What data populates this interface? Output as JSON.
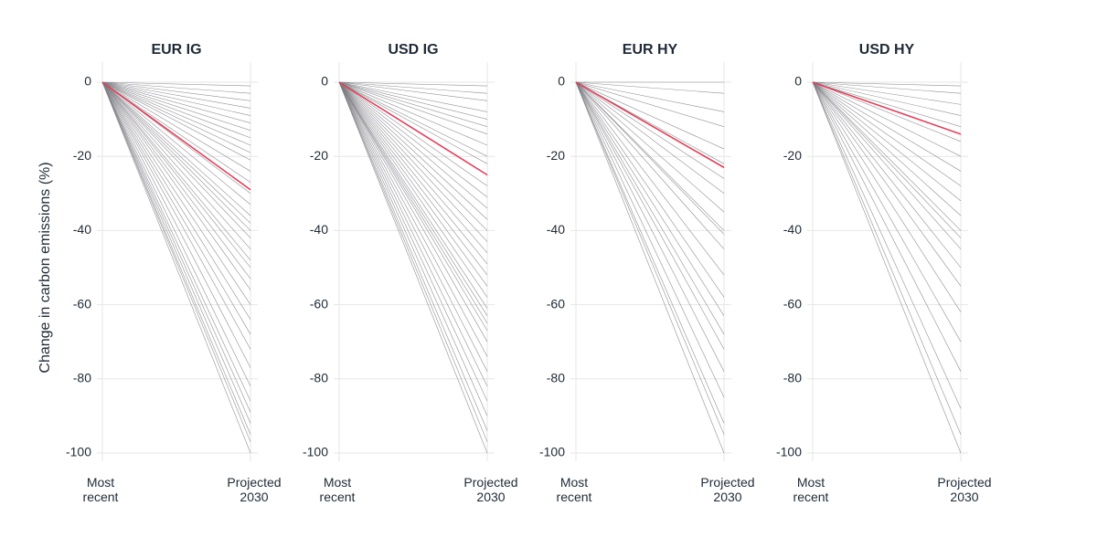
{
  "chart_data": [
    {
      "type": "line",
      "title": "EUR IG",
      "ylabel": "Change in carbon emissions (%)",
      "categories": [
        "Most recent",
        "Projected 2030"
      ],
      "ylim": [
        -100,
        0
      ],
      "yticks": [
        0,
        -20,
        -40,
        -60,
        -80,
        -100
      ],
      "grid": true,
      "color": "#7d7d82",
      "series": [
        {
          "values": [
            0,
            -1
          ]
        },
        {
          "values": [
            0,
            -3
          ]
        },
        {
          "values": [
            0,
            -5
          ]
        },
        {
          "values": [
            0,
            -7
          ]
        },
        {
          "values": [
            0,
            -9
          ]
        },
        {
          "values": [
            0,
            -11
          ]
        },
        {
          "values": [
            0,
            -13
          ]
        },
        {
          "values": [
            0,
            -15
          ]
        },
        {
          "values": [
            0,
            -17
          ]
        },
        {
          "values": [
            0,
            -19
          ]
        },
        {
          "values": [
            0,
            -21
          ]
        },
        {
          "values": [
            0,
            -24
          ]
        },
        {
          "values": [
            0,
            -27
          ]
        },
        {
          "values": [
            0,
            -30
          ]
        },
        {
          "values": [
            0,
            -33
          ]
        },
        {
          "values": [
            0,
            -36
          ]
        },
        {
          "values": [
            0,
            -38
          ]
        },
        {
          "values": [
            0,
            -40
          ]
        },
        {
          "values": [
            0,
            -42
          ]
        },
        {
          "values": [
            0,
            -45
          ]
        },
        {
          "values": [
            0,
            -48
          ]
        },
        {
          "values": [
            0,
            -50
          ]
        },
        {
          "values": [
            0,
            -53
          ]
        },
        {
          "values": [
            0,
            -56
          ]
        },
        {
          "values": [
            0,
            -60
          ]
        },
        {
          "values": [
            0,
            -64
          ]
        },
        {
          "values": [
            0,
            -68
          ]
        },
        {
          "values": [
            0,
            -72
          ]
        },
        {
          "values": [
            0,
            -77
          ]
        },
        {
          "values": [
            0,
            -82
          ]
        },
        {
          "values": [
            0,
            -86
          ]
        },
        {
          "values": [
            0,
            -89
          ]
        },
        {
          "values": [
            0,
            -92
          ]
        },
        {
          "values": [
            0,
            -95
          ]
        },
        {
          "values": [
            0,
            -97
          ]
        },
        {
          "values": [
            0,
            -100
          ]
        },
        {
          "color": "#e0405a",
          "values": [
            0,
            -29
          ]
        }
      ]
    },
    {
      "type": "line",
      "title": "USD IG",
      "categories": [
        "Most recent",
        "Projected 2030"
      ],
      "ylim": [
        -100,
        0
      ],
      "yticks": [
        0,
        -20,
        -40,
        -60,
        -80,
        -100
      ],
      "grid": true,
      "color": "#7d7d82",
      "series": [
        {
          "values": [
            0,
            -1
          ]
        },
        {
          "values": [
            0,
            -3
          ]
        },
        {
          "values": [
            0,
            -5
          ]
        },
        {
          "values": [
            0,
            -8
          ]
        },
        {
          "values": [
            0,
            -10
          ]
        },
        {
          "values": [
            0,
            -12
          ]
        },
        {
          "values": [
            0,
            -14
          ]
        },
        {
          "values": [
            0,
            -17
          ]
        },
        {
          "values": [
            0,
            -20
          ]
        },
        {
          "values": [
            0,
            -22
          ]
        },
        {
          "values": [
            0,
            -25
          ]
        },
        {
          "values": [
            0,
            -28
          ]
        },
        {
          "values": [
            0,
            -31
          ]
        },
        {
          "values": [
            0,
            -34
          ]
        },
        {
          "values": [
            0,
            -37
          ]
        },
        {
          "values": [
            0,
            -40
          ]
        },
        {
          "values": [
            0,
            -43
          ]
        },
        {
          "values": [
            0,
            -46
          ]
        },
        {
          "values": [
            0,
            -49
          ]
        },
        {
          "values": [
            0,
            -52
          ]
        },
        {
          "values": [
            0,
            -55
          ]
        },
        {
          "values": [
            0,
            -58
          ]
        },
        {
          "values": [
            0,
            -61
          ]
        },
        {
          "values": [
            0,
            -63
          ]
        },
        {
          "values": [
            0,
            -65
          ]
        },
        {
          "values": [
            0,
            -67
          ]
        },
        {
          "values": [
            0,
            -70
          ]
        },
        {
          "values": [
            0,
            -74
          ]
        },
        {
          "values": [
            0,
            -78
          ]
        },
        {
          "values": [
            0,
            -82
          ]
        },
        {
          "values": [
            0,
            -86
          ]
        },
        {
          "values": [
            0,
            -90
          ]
        },
        {
          "values": [
            0,
            -94
          ]
        },
        {
          "values": [
            0,
            -97
          ]
        },
        {
          "values": [
            0,
            -100
          ]
        },
        {
          "color": "#e0405a",
          "values": [
            0,
            -25
          ]
        }
      ]
    },
    {
      "type": "line",
      "title": "EUR HY",
      "categories": [
        "Most recent",
        "Projected 2030"
      ],
      "ylim": [
        -100,
        0
      ],
      "yticks": [
        0,
        -20,
        -40,
        -60,
        -80,
        -100
      ],
      "grid": true,
      "color": "#7d7d82",
      "series": [
        {
          "values": [
            0,
            0
          ]
        },
        {
          "values": [
            0,
            -3
          ]
        },
        {
          "values": [
            0,
            -8
          ]
        },
        {
          "values": [
            0,
            -12
          ]
        },
        {
          "values": [
            0,
            -18
          ]
        },
        {
          "values": [
            0,
            -22
          ]
        },
        {
          "values": [
            0,
            -26
          ]
        },
        {
          "values": [
            0,
            -30
          ]
        },
        {
          "values": [
            0,
            -35
          ]
        },
        {
          "values": [
            0,
            -40
          ]
        },
        {
          "values": [
            0,
            -41
          ]
        },
        {
          "values": [
            0,
            -45
          ]
        },
        {
          "values": [
            0,
            -52
          ]
        },
        {
          "values": [
            0,
            -58
          ]
        },
        {
          "values": [
            0,
            -63
          ]
        },
        {
          "values": [
            0,
            -68
          ]
        },
        {
          "values": [
            0,
            -72
          ]
        },
        {
          "values": [
            0,
            -78
          ]
        },
        {
          "values": [
            0,
            -85
          ]
        },
        {
          "values": [
            0,
            -92
          ]
        },
        {
          "values": [
            0,
            -95
          ]
        },
        {
          "values": [
            0,
            -100
          ]
        },
        {
          "color": "#e0405a",
          "values": [
            0,
            -23
          ]
        }
      ]
    },
    {
      "type": "line",
      "title": "USD HY",
      "categories": [
        "Most recent",
        "Projected 2030"
      ],
      "ylim": [
        -100,
        0
      ],
      "yticks": [
        0,
        -20,
        -40,
        -60,
        -80,
        -100
      ],
      "grid": true,
      "color": "#7d7d82",
      "series": [
        {
          "values": [
            0,
            -1
          ]
        },
        {
          "values": [
            0,
            -3
          ]
        },
        {
          "values": [
            0,
            -6
          ]
        },
        {
          "values": [
            0,
            -9
          ]
        },
        {
          "values": [
            0,
            -12
          ]
        },
        {
          "values": [
            0,
            -16
          ]
        },
        {
          "values": [
            0,
            -20
          ]
        },
        {
          "values": [
            0,
            -24
          ]
        },
        {
          "values": [
            0,
            -28
          ]
        },
        {
          "values": [
            0,
            -32
          ]
        },
        {
          "values": [
            0,
            -36
          ]
        },
        {
          "values": [
            0,
            -40
          ]
        },
        {
          "values": [
            0,
            -42
          ]
        },
        {
          "values": [
            0,
            -45
          ]
        },
        {
          "values": [
            0,
            -50
          ]
        },
        {
          "values": [
            0,
            -55
          ]
        },
        {
          "values": [
            0,
            -62
          ]
        },
        {
          "values": [
            0,
            -70
          ]
        },
        {
          "values": [
            0,
            -78
          ]
        },
        {
          "values": [
            0,
            -88
          ]
        },
        {
          "values": [
            0,
            -95
          ]
        },
        {
          "values": [
            0,
            -100
          ]
        },
        {
          "color": "#e0405a",
          "values": [
            0,
            -14
          ]
        }
      ]
    }
  ]
}
